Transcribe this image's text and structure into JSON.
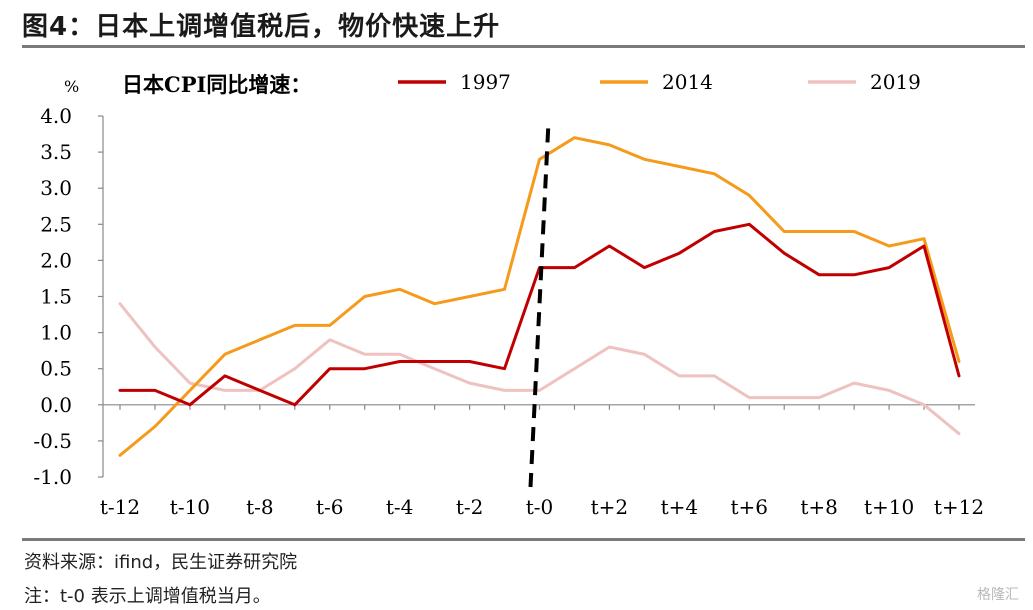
{
  "figure_title": "图4：日本上调增值税后，物价快速上升",
  "source": "资料来源：ifind，民生证券研究院",
  "note": "注：t-0 表示上调增值税当月。",
  "watermark": "格隆汇",
  "chart_data": {
    "type": "line",
    "unit": "%",
    "legend_title": "日本CPI同比增速：",
    "legend_position": "top",
    "x": [
      "t-12",
      "t-11",
      "t-10",
      "t-9",
      "t-8",
      "t-7",
      "t-6",
      "t-5",
      "t-4",
      "t-3",
      "t-2",
      "t-1",
      "t-0",
      "t+1",
      "t+2",
      "t+3",
      "t+4",
      "t+5",
      "t+6",
      "t+7",
      "t+8",
      "t+9",
      "t+10",
      "t+11",
      "t+12"
    ],
    "x_tick_labels": [
      "t-12",
      "t-10",
      "t-8",
      "t-6",
      "t-4",
      "t-2",
      "t-0",
      "t+2",
      "t+4",
      "t+6",
      "t+8",
      "t+10",
      "t+12"
    ],
    "y_tick_labels": [
      "4.0",
      "3.5",
      "3.0",
      "2.5",
      "2.0",
      "1.5",
      "1.0",
      "0.5",
      "0.0",
      "-0.5",
      "-1.0"
    ],
    "ylim": [
      -1.0,
      4.0
    ],
    "grid": false,
    "event_marker": "t-0",
    "series": [
      {
        "name": "1997",
        "color": "#c00000",
        "values": [
          0.2,
          0.2,
          0.0,
          0.4,
          0.2,
          0.0,
          0.5,
          0.5,
          0.6,
          0.6,
          0.6,
          0.5,
          1.9,
          1.9,
          2.2,
          1.9,
          2.1,
          2.4,
          2.5,
          2.1,
          1.8,
          1.8,
          1.9,
          2.2,
          0.4
        ]
      },
      {
        "name": "2014",
        "color": "#f59a1b",
        "values": [
          -0.7,
          -0.3,
          0.2,
          0.7,
          0.9,
          1.1,
          1.1,
          1.5,
          1.6,
          1.4,
          1.5,
          1.6,
          3.4,
          3.7,
          3.6,
          3.4,
          3.3,
          3.2,
          2.9,
          2.4,
          2.4,
          2.4,
          2.2,
          2.3,
          0.6
        ]
      },
      {
        "name": "2019",
        "color": "#efc2c2",
        "values": [
          1.4,
          0.8,
          0.3,
          0.2,
          0.2,
          0.5,
          0.9,
          0.7,
          0.7,
          0.5,
          0.3,
          0.2,
          0.2,
          0.5,
          0.8,
          0.7,
          0.4,
          0.4,
          0.1,
          0.1,
          0.1,
          0.3,
          0.2,
          0.0,
          -0.4
        ]
      }
    ]
  }
}
